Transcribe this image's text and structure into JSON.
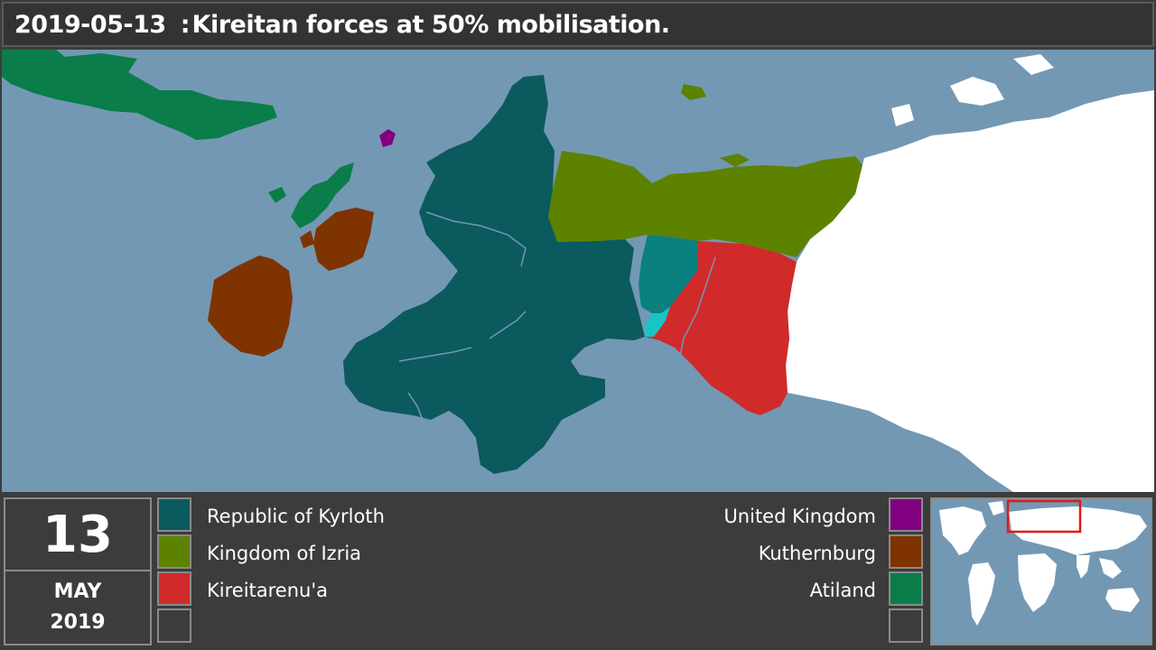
{
  "header": {
    "date": "2019-05-13",
    "separator": ":",
    "title": "Kireitan forces at 50% mobilisation."
  },
  "date_box": {
    "day": "13",
    "month": "MAY",
    "year": "2019"
  },
  "legend_left": [
    {
      "label": "Republic of Kyrloth",
      "color": "#0b5a5e"
    },
    {
      "label": "Kingdom of Izria",
      "color": "#5d8200"
    },
    {
      "label": "Kireitarenu'a",
      "color": "#d12a2a"
    },
    {
      "label": "",
      "color": "#3c3c3c"
    }
  ],
  "legend_right": [
    {
      "label": "United Kingdom",
      "color": "#800080"
    },
    {
      "label": "Kuthernburg",
      "color": "#7f3300"
    },
    {
      "label": "Atiland",
      "color": "#0a7d4a"
    },
    {
      "label": "",
      "color": "#3c3c3c"
    }
  ],
  "map_colors": {
    "ocean": "#7398b4",
    "land_neutral": "#ffffff",
    "kireitan_occupied_light": "#0a8080",
    "kireitan_occupied_cyan": "#19c4c4"
  }
}
